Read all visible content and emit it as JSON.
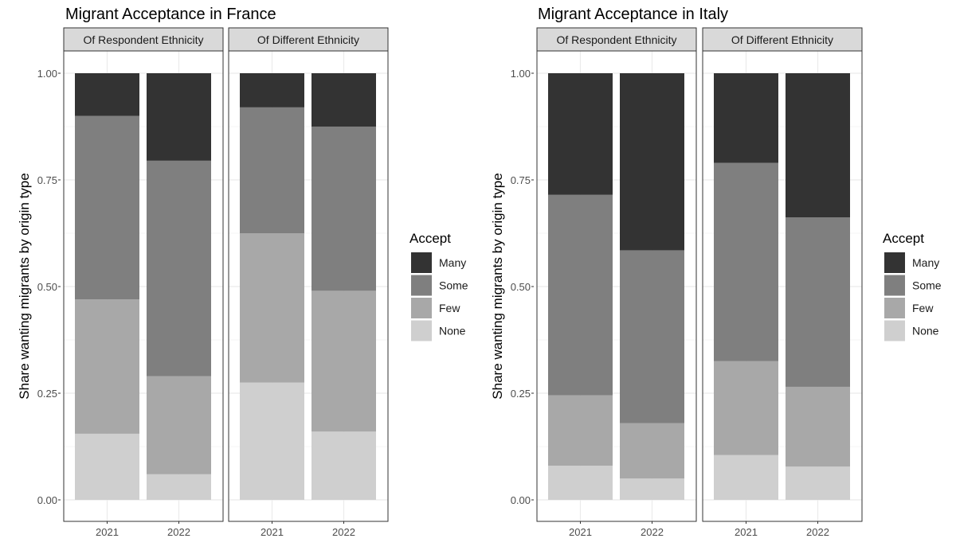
{
  "chart_data": [
    {
      "type": "bar",
      "stacked": true,
      "title": "Migrant Acceptance in France",
      "ylabel": "Share wanting migrants by origin type",
      "xlabel": "",
      "ylim": [
        0,
        1
      ],
      "yticks": [
        "0.00",
        "0.25",
        "0.50",
        "0.75",
        "1.00"
      ],
      "categories": [
        "2021",
        "2022"
      ],
      "legend_title": "Accept",
      "legend_placement": "right",
      "grid": true,
      "facets": [
        {
          "label": "Of Respondent Ethnicity",
          "series": [
            {
              "name": "None",
              "values": [
                0.155,
                0.06
              ]
            },
            {
              "name": "Few",
              "values": [
                0.315,
                0.23
              ]
            },
            {
              "name": "Some",
              "values": [
                0.43,
                0.505
              ]
            },
            {
              "name": "Many",
              "values": [
                0.1,
                0.205
              ]
            }
          ]
        },
        {
          "label": "Of Different Ethnicity",
          "series": [
            {
              "name": "None",
              "values": [
                0.275,
                0.16
              ]
            },
            {
              "name": "Few",
              "values": [
                0.35,
                0.33
              ]
            },
            {
              "name": "Some",
              "values": [
                0.295,
                0.385
              ]
            },
            {
              "name": "Many",
              "values": [
                0.08,
                0.125
              ]
            }
          ]
        }
      ]
    },
    {
      "type": "bar",
      "stacked": true,
      "title": "Migrant Acceptance in Italy",
      "ylabel": "Share wanting migrants by origin type",
      "xlabel": "",
      "ylim": [
        0,
        1
      ],
      "yticks": [
        "0.00",
        "0.25",
        "0.50",
        "0.75",
        "1.00"
      ],
      "categories": [
        "2021",
        "2022"
      ],
      "legend_title": "Accept",
      "legend_placement": "right",
      "grid": true,
      "facets": [
        {
          "label": "Of Respondent Ethnicity",
          "series": [
            {
              "name": "None",
              "values": [
                0.08,
                0.05
              ]
            },
            {
              "name": "Few",
              "values": [
                0.165,
                0.13
              ]
            },
            {
              "name": "Some",
              "values": [
                0.47,
                0.405
              ]
            },
            {
              "name": "Many",
              "values": [
                0.285,
                0.415
              ]
            }
          ]
        },
        {
          "label": "Of Different Ethnicity",
          "series": [
            {
              "name": "None",
              "values": [
                0.105,
                0.078
              ]
            },
            {
              "name": "Few",
              "values": [
                0.22,
                0.187
              ]
            },
            {
              "name": "Some",
              "values": [
                0.465,
                0.397
              ]
            },
            {
              "name": "Many",
              "values": [
                0.21,
                0.338
              ]
            }
          ]
        }
      ]
    }
  ],
  "legend_order": [
    "Many",
    "Some",
    "Few",
    "None"
  ],
  "colors": {
    "Many": "#333333",
    "Some": "#7f7f7f",
    "Few": "#a8a8a8",
    "None": "#cfcfcf",
    "strip_fill": "#d9d9d9",
    "grid_major": "#ebebeb",
    "grid_minor": "#f5f5f5",
    "panel_border": "#333333",
    "text": "#000000",
    "tick_text": "#4d4d4d"
  }
}
